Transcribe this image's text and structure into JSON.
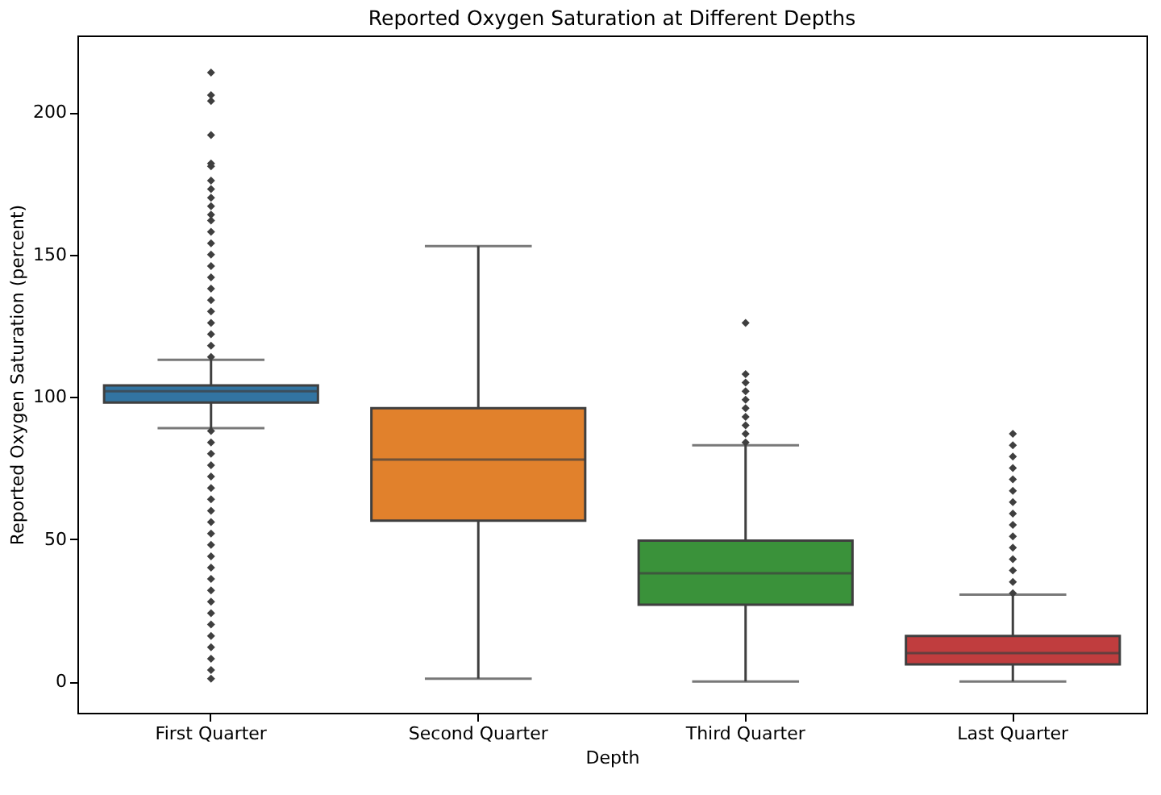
{
  "chart_data": {
    "type": "box",
    "title": "Reported Oxygen Saturation at Different Depths",
    "xlabel": "Depth",
    "ylabel": "Reported Oxygen Saturation (percent)",
    "categories": [
      "First Quarter",
      "Second Quarter",
      "Third Quarter",
      "Last Quarter"
    ],
    "colors": [
      "#3274a1",
      "#e1812c",
      "#3a923a",
      "#c03d3e"
    ],
    "boxes": [
      {
        "low": 89,
        "q1": 98,
        "median": 102,
        "q3": 104,
        "high": 113,
        "outliers": [
          1,
          4,
          8,
          12,
          16,
          20,
          24,
          28,
          32,
          36,
          40,
          44,
          48,
          52,
          56,
          60,
          64,
          68,
          72,
          76,
          80,
          84,
          88,
          114,
          118,
          122,
          126,
          130,
          134,
          138,
          142,
          146,
          150,
          154,
          158,
          162,
          164,
          167,
          170,
          173,
          176,
          181,
          182,
          192,
          204,
          206,
          214
        ]
      },
      {
        "low": 1,
        "q1": 56.5,
        "median": 78,
        "q3": 96,
        "high": 153
      },
      {
        "low": 0,
        "q1": 27,
        "median": 38,
        "q3": 49.5,
        "high": 83,
        "outliers": [
          84,
          87,
          90,
          93,
          96,
          99,
          102,
          105,
          108,
          126
        ]
      },
      {
        "low": 0,
        "q1": 6,
        "median": 10,
        "q3": 16,
        "high": 30.5,
        "outliers": [
          31,
          35,
          39,
          43,
          47,
          51,
          55,
          59,
          63,
          67,
          71,
          75,
          79,
          83,
          87
        ]
      }
    ],
    "marker": "diamond",
    "ylim": [
      -11,
      227
    ],
    "yticks": [
      0,
      50,
      100,
      150,
      200
    ],
    "grid": false,
    "legend": false
  }
}
